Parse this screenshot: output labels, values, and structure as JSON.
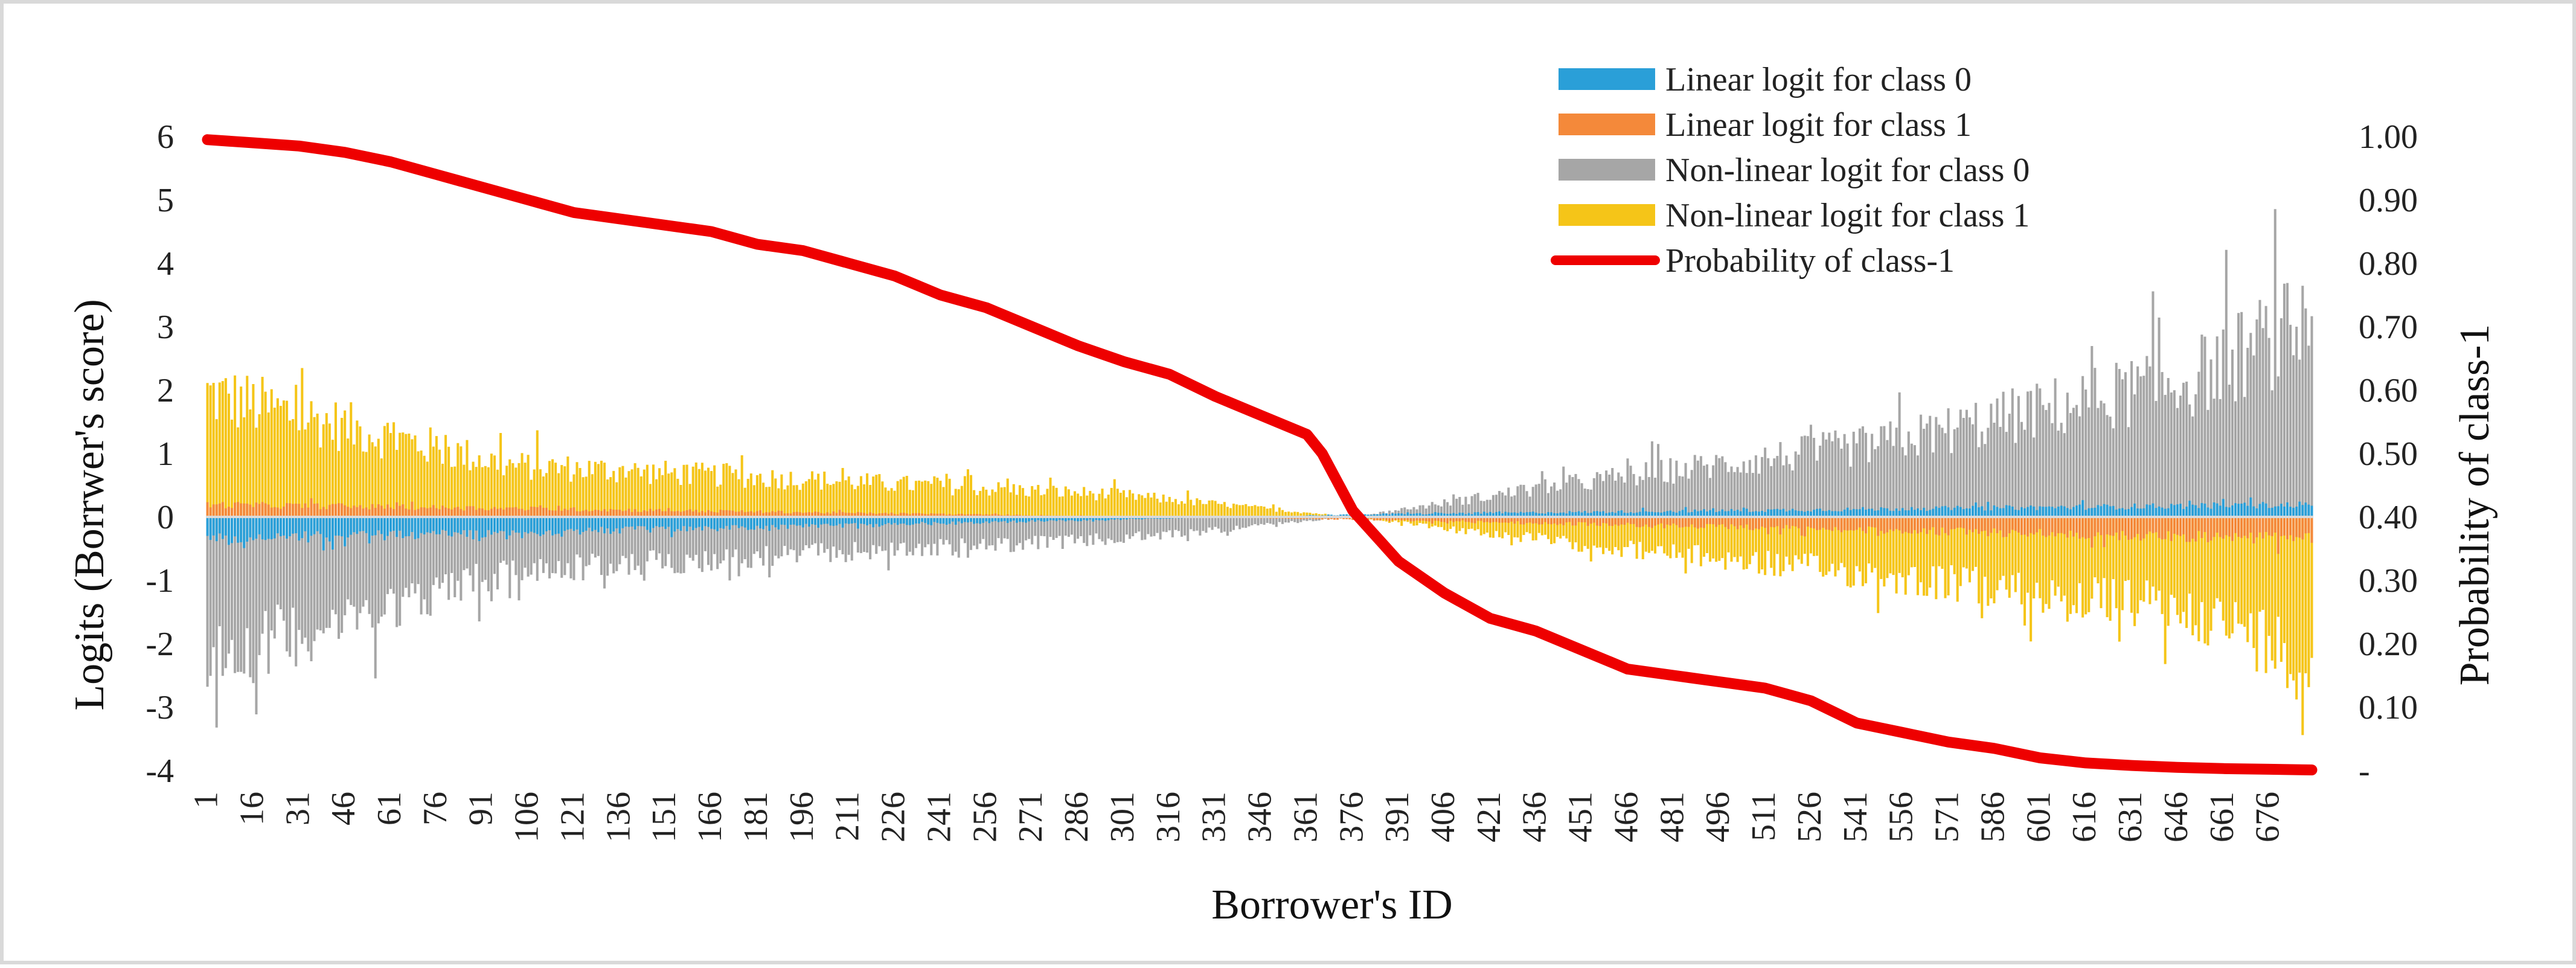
{
  "chart_data": {
    "type": "bar",
    "xlabel": "Borrower's ID",
    "ylabel": "Logits (Borrwer's score)",
    "y2label": "Probability of class-1",
    "ylim": [
      -4,
      6
    ],
    "y_ticks": [
      6,
      5,
      4,
      3,
      2,
      1,
      0,
      -1,
      -2,
      -3,
      -4
    ],
    "y2lim": [
      0,
      1
    ],
    "y2_ticks": [
      "1.00",
      "0.90",
      "0.80",
      "0.70",
      "0.60",
      "0.50",
      "0.40",
      "0.30",
      "0.20",
      "0.10",
      "-"
    ],
    "y2_tick_values": [
      1.0,
      0.9,
      0.8,
      0.7,
      0.6,
      0.5,
      0.4,
      0.3,
      0.2,
      0.1,
      0.0
    ],
    "n_borrowers": 690,
    "x_tick_labels": [
      "1",
      "16",
      "31",
      "46",
      "61",
      "76",
      "91",
      "106",
      "121",
      "136",
      "151",
      "166",
      "181",
      "196",
      "211",
      "226",
      "241",
      "256",
      "271",
      "286",
      "301",
      "316",
      "331",
      "346",
      "361",
      "376",
      "391",
      "406",
      "421",
      "436",
      "451",
      "466",
      "481",
      "496",
      "511",
      "526",
      "541",
      "556",
      "571",
      "586",
      "601",
      "616",
      "631",
      "646",
      "661",
      "676"
    ],
    "legend": {
      "position": "top-right",
      "items": [
        {
          "label": "Linear logit for class 0",
          "color": "#2a9fd8",
          "kind": "bar"
        },
        {
          "label": "Linear logit for class 1",
          "color": "#f4893a",
          "kind": "bar"
        },
        {
          "label": "Non-linear logit for class 0",
          "color": "#a6a6a6",
          "kind": "bar"
        },
        {
          "label": "Non-linear logit for class 1",
          "color": "#f5c518",
          "kind": "bar"
        },
        {
          "label": "Probability of class-1",
          "color": "#ee0000",
          "kind": "line"
        }
      ]
    },
    "series": [
      {
        "name": "Non-linear logit for class 1",
        "axis": "left",
        "color": "#f5c518",
        "approx_envelope": {
          "ids": [
            1,
            100,
            200,
            300,
            376,
            450,
            550,
            650,
            690
          ],
          "values": [
            2.5,
            1.05,
            0.75,
            0.45,
            0.0,
            -0.55,
            -1.2,
            -1.9,
            -2.9
          ]
        }
      },
      {
        "name": "Non-linear logit for class 0",
        "axis": "left",
        "color": "#a6a6a6",
        "approx_envelope": {
          "ids": [
            1,
            100,
            200,
            300,
            376,
            450,
            550,
            650,
            690
          ],
          "values": [
            -2.9,
            -1.1,
            -0.75,
            -0.45,
            0.0,
            0.7,
            1.5,
            2.8,
            4.0
          ]
        }
      },
      {
        "name": "Linear logit for class 0",
        "axis": "left",
        "color": "#2a9fd8",
        "approx_envelope": {
          "ids": [
            1,
            376,
            690
          ],
          "values": [
            -0.45,
            0.05,
            0.25
          ]
        }
      },
      {
        "name": "Linear logit for class 1",
        "axis": "left",
        "color": "#f4893a",
        "approx_envelope": {
          "ids": [
            1,
            376,
            690
          ],
          "values": [
            0.25,
            -0.05,
            -0.45
          ]
        }
      },
      {
        "name": "Probability of class-1",
        "axis": "right",
        "type": "line",
        "color": "#ee0000",
        "x": [
          1,
          16,
          31,
          46,
          61,
          76,
          91,
          106,
          121,
          136,
          151,
          166,
          181,
          196,
          211,
          226,
          241,
          256,
          271,
          286,
          301,
          316,
          331,
          346,
          361,
          366,
          376,
          391,
          406,
          421,
          436,
          451,
          466,
          481,
          496,
          511,
          526,
          541,
          556,
          571,
          586,
          601,
          616,
          631,
          646,
          661,
          676,
          690
        ],
        "values": [
          0.995,
          0.99,
          0.985,
          0.975,
          0.96,
          0.94,
          0.92,
          0.9,
          0.88,
          0.87,
          0.86,
          0.85,
          0.83,
          0.82,
          0.8,
          0.78,
          0.75,
          0.73,
          0.7,
          0.67,
          0.645,
          0.625,
          0.59,
          0.56,
          0.53,
          0.5,
          0.41,
          0.33,
          0.28,
          0.24,
          0.22,
          0.19,
          0.16,
          0.15,
          0.14,
          0.13,
          0.11,
          0.075,
          0.06,
          0.045,
          0.035,
          0.02,
          0.012,
          0.008,
          0.005,
          0.003,
          0.002,
          0.001
        ]
      }
    ]
  }
}
